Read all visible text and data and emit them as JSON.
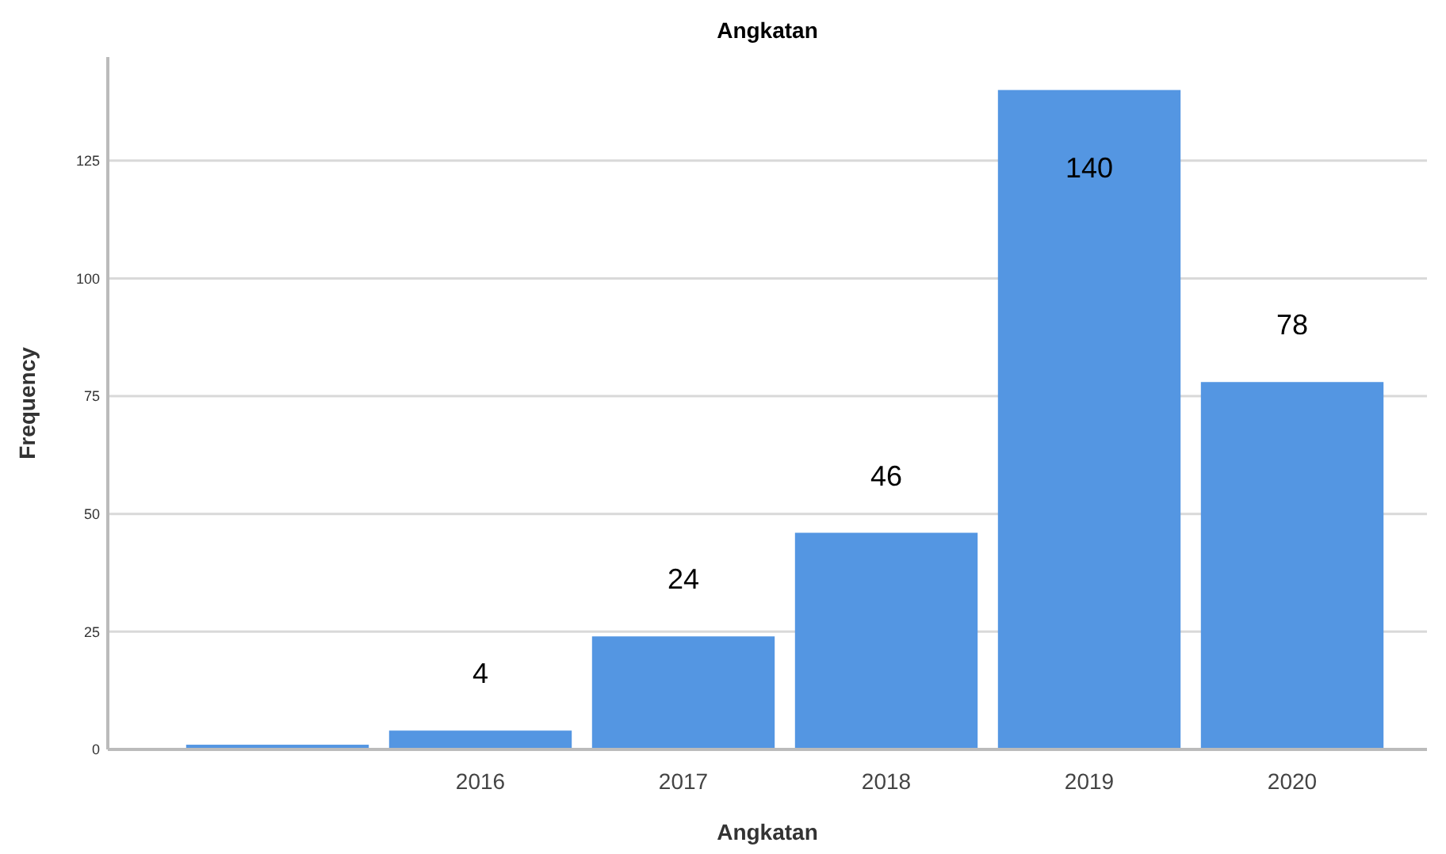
{
  "chart_data": {
    "type": "bar",
    "title": "Angkatan",
    "xlabel": "Angkatan",
    "ylabel": "Frequency",
    "categories": [
      null,
      "2016",
      "2017",
      "2018",
      "2019",
      "2020"
    ],
    "values": [
      1,
      4,
      24,
      46,
      140,
      78
    ],
    "value_labels": [
      null,
      "4",
      "24",
      "46",
      "140",
      "78"
    ],
    "color": "#5496e2",
    "ylim": [
      0,
      147
    ],
    "yticks": [
      0,
      25,
      50,
      75,
      100,
      125
    ],
    "grid": "y"
  }
}
